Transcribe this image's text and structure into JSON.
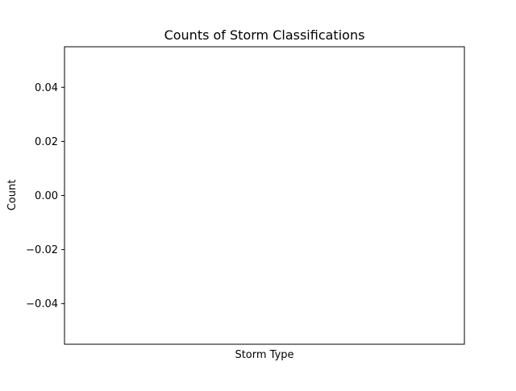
{
  "chart_data": {
    "type": "bar",
    "title": "Counts of Storm Classifications",
    "xlabel": "Storm Type",
    "ylabel": "Count",
    "categories": [],
    "values": [],
    "ylim": [
      -0.055,
      0.055
    ],
    "yticks": [
      0.04,
      0.02,
      0.0,
      -0.02,
      -0.04
    ],
    "ytick_labels": [
      "0.04",
      "0.02",
      "0.00",
      "−0.02",
      "−0.04"
    ],
    "grid": false,
    "legend": "none"
  }
}
